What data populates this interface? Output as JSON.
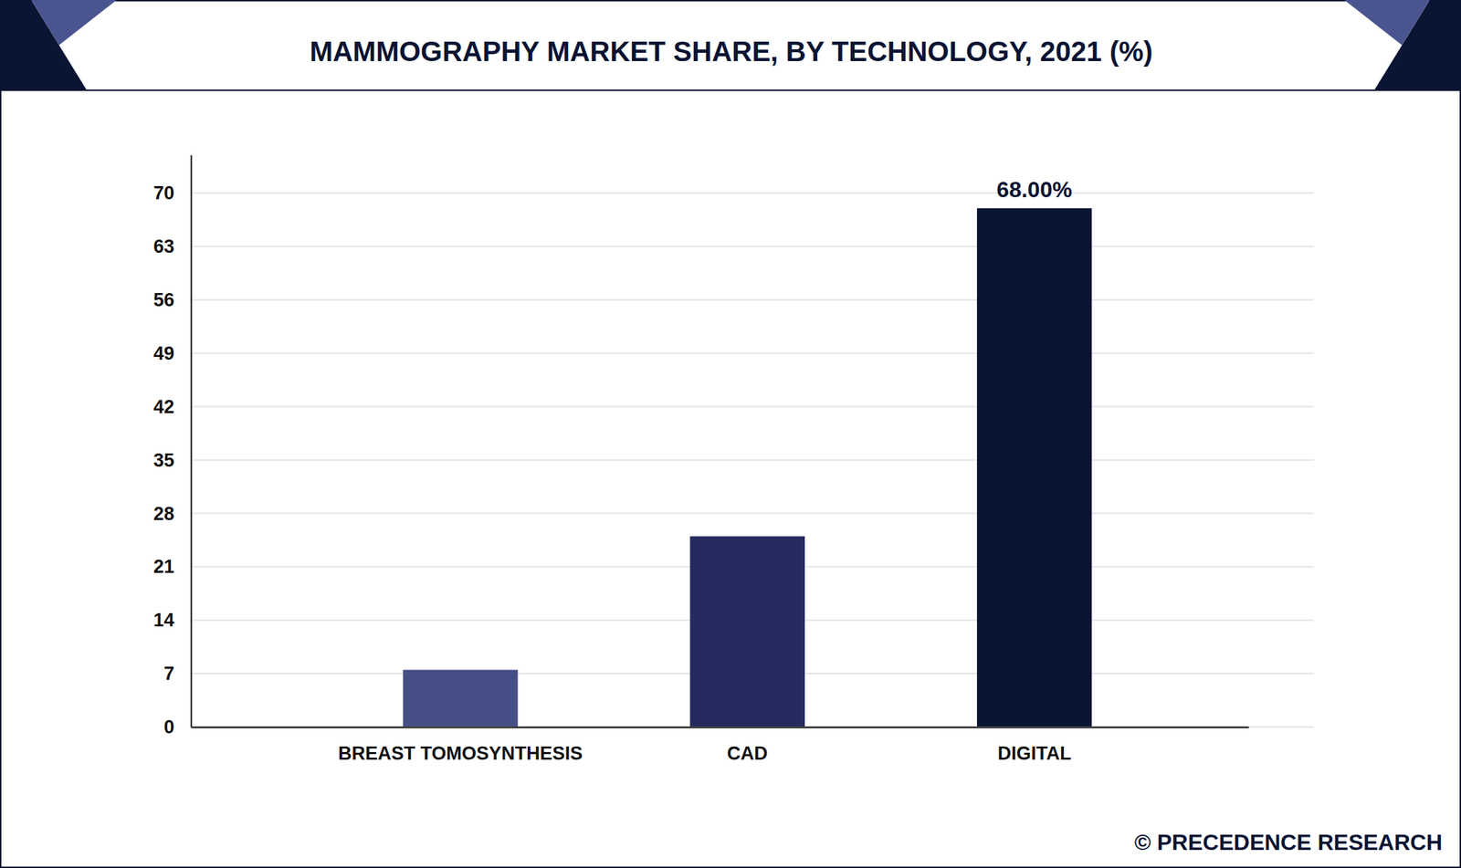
{
  "chart_data": {
    "type": "bar",
    "title": "MAMMOGRAPHY MARKET SHARE, BY TECHNOLOGY, 2021 (%)",
    "categories": [
      "BREAST TOMOSYNTHESIS",
      "CAD",
      "DIGITAL"
    ],
    "values": [
      7.5,
      25,
      68
    ],
    "value_labels": [
      null,
      null,
      "68.00%"
    ],
    "colors": [
      "#454f86",
      "#252b5f",
      "#0a1433"
    ],
    "ylim": [
      0,
      75
    ],
    "yticks": [
      0,
      7,
      14,
      21,
      28,
      35,
      42,
      49,
      56,
      63,
      70
    ],
    "grid": true,
    "source": "© PRECEDENCE RESEARCH"
  }
}
